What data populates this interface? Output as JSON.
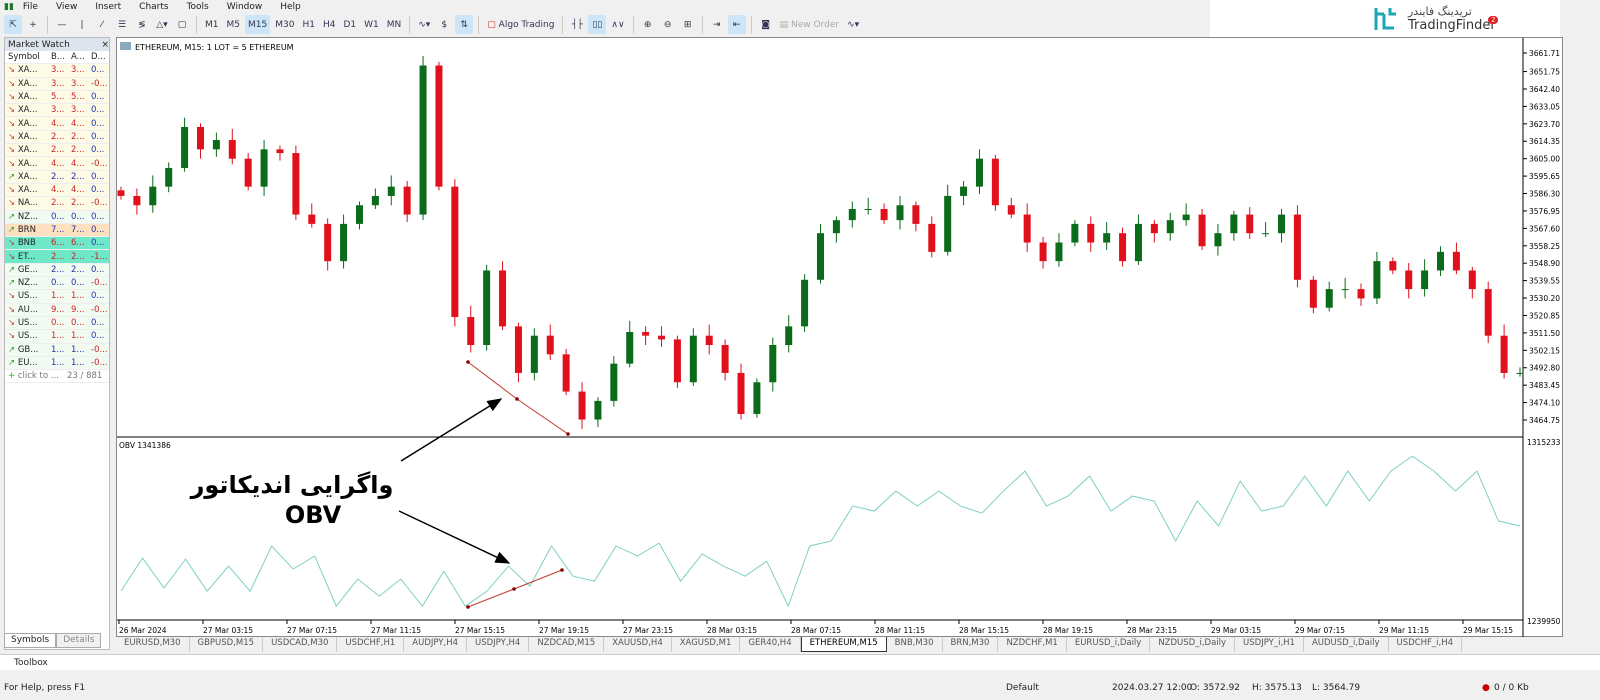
{
  "menu": [
    "File",
    "View",
    "Insert",
    "Charts",
    "Tools",
    "Window",
    "Help"
  ],
  "toolbar": {
    "timeframes": [
      "M1",
      "M5",
      "M15",
      "M30",
      "H1",
      "H4",
      "D1",
      "W1",
      "MN"
    ],
    "active_tf": "M15",
    "algo": "Algo Trading",
    "new_order": "New Order",
    "notif_count": "2"
  },
  "logo": {
    "persian": "تریدینگ فایندر",
    "latin": "TradingFinder"
  },
  "market_watch": {
    "title": "Market Watch",
    "headers": [
      "Symbol",
      "B...",
      "A...",
      "D..."
    ],
    "rows": [
      [
        "XA...",
        "3...",
        "3...",
        "0...",
        "down"
      ],
      [
        "XA...",
        "3...",
        "3...",
        "-0...",
        "down"
      ],
      [
        "XA...",
        "5...",
        "5...",
        "0...",
        "down"
      ],
      [
        "XA...",
        "3...",
        "3...",
        "0...",
        "down"
      ],
      [
        "XA...",
        "4...",
        "4...",
        "0...",
        "down"
      ],
      [
        "XA...",
        "2...",
        "2...",
        "0...",
        "down"
      ],
      [
        "XA...",
        "2...",
        "2...",
        "0...",
        "down"
      ],
      [
        "XA...",
        "4...",
        "4...",
        "-0...",
        "down"
      ],
      [
        "XA...",
        "2...",
        "2...",
        "0...",
        "up"
      ],
      [
        "XA...",
        "4...",
        "4...",
        "0...",
        "down"
      ],
      [
        "NA...",
        "2...",
        "2...",
        "-0...",
        "down"
      ],
      [
        "NZ...",
        "0...",
        "0...",
        "0...",
        "up"
      ],
      [
        "BRN",
        "7...",
        "7...",
        "0...",
        "up"
      ],
      [
        "BNB",
        "6...",
        "6...",
        "0...",
        "down"
      ],
      [
        "ET...",
        "2...",
        "2...",
        "-1...",
        "down"
      ],
      [
        "GE...",
        "2...",
        "2...",
        "0...",
        "up"
      ],
      [
        "NZ...",
        "0...",
        "0...",
        "-0...",
        "up"
      ],
      [
        "US...",
        "1...",
        "1...",
        "0...",
        "down"
      ],
      [
        "AU...",
        "9...",
        "9...",
        "-0...",
        "down"
      ],
      [
        "US...",
        "0...",
        "0...",
        "0...",
        "down"
      ],
      [
        "US...",
        "1...",
        "1...",
        "0...",
        "down"
      ],
      [
        "GB...",
        "1...",
        "1...",
        "-0...",
        "up"
      ],
      [
        "EU...",
        "1...",
        "1...",
        "-0...",
        "up"
      ]
    ],
    "add": "click to ...",
    "count": "23 / 881",
    "tabs": [
      "Symbols",
      "Details"
    ]
  },
  "chart": {
    "title": "ETHEREUM, M15:  1 LOT = 5 ETHEREUM",
    "indicator_label": "OBV 1341386",
    "price_ticks": [
      "3661.71",
      "3651.75",
      "3642.40",
      "3633.05",
      "3623.70",
      "3614.35",
      "3605.00",
      "3595.65",
      "3586.30",
      "3576.95",
      "3567.60",
      "3558.25",
      "3548.90",
      "3539.55",
      "3530.20",
      "3520.85",
      "3511.50",
      "3502.15",
      "3492.80",
      "3483.45",
      "3474.10",
      "3464.75"
    ],
    "obv_ticks": [
      "1315233",
      "1239950"
    ],
    "time_ticks": [
      "26 Mar 2024",
      "27 Mar 03:15",
      "27 Mar 07:15",
      "27 Mar 11:15",
      "27 Mar 15:15",
      "27 Mar 19:15",
      "27 Mar 23:15",
      "28 Mar 03:15",
      "28 Mar 07:15",
      "28 Mar 11:15",
      "28 Mar 15:15",
      "28 Mar 19:15",
      "28 Mar 23:15",
      "29 Mar 03:15",
      "29 Mar 07:15",
      "29 Mar 11:15",
      "29 Mar 15:15"
    ],
    "closes": [
      3585,
      3580,
      3590,
      3600,
      3622,
      3610,
      3615,
      3605,
      3590,
      3610,
      3608,
      3575,
      3570,
      3550,
      3570,
      3580,
      3585,
      3590,
      3575,
      3655,
      3590,
      3520,
      3505,
      3545,
      3515,
      3490,
      3510,
      3500,
      3480,
      3465,
      3475,
      3495,
      3512,
      3510,
      3508,
      3485,
      3510,
      3505,
      3490,
      3468,
      3485,
      3505,
      3515,
      3540,
      3565,
      3572,
      3578,
      3578,
      3572,
      3580,
      3570,
      3555,
      3585,
      3590,
      3605,
      3580,
      3575,
      3560,
      3550,
      3560,
      3570,
      3560,
      3565,
      3550,
      3570,
      3565,
      3572,
      3575,
      3558,
      3565,
      3575,
      3565,
      3565,
      3575,
      3540,
      3525,
      3535,
      3535,
      3530,
      3550,
      3545,
      3535,
      3545,
      3555,
      3545,
      3535,
      3510,
      3490,
      3490
    ],
    "obv": [
      1252500,
      1266400,
      1253800,
      1266000,
      1252500,
      1263000,
      1252500,
      1271500,
      1261800,
      1267300,
      1246200,
      1257600,
      1250400,
      1257600,
      1246200,
      1260900,
      1246200,
      1252500,
      1263000,
      1254600,
      1271500,
      1258800,
      1256700,
      1271500,
      1267300,
      1272700,
      1256700,
      1268100,
      1263000,
      1258800,
      1265100,
      1246200,
      1271500,
      1273600,
      1288300,
      1286200,
      1294600,
      1288300,
      1294600,
      1288300,
      1285300,
      1294600,
      1303000,
      1288300,
      1292500,
      1300900,
      1286200,
      1292500,
      1290400,
      1273600,
      1290400,
      1279900,
      1298800,
      1286200,
      1288300,
      1300900,
      1288300,
      1303000,
      1290400,
      1303000,
      1309300,
      1303000,
      1294600,
      1303000,
      1282000,
      1279900
    ],
    "colors": {
      "bull": "#0a6b1a",
      "bear": "#e0101c",
      "obv": "#7fcfc4",
      "divergence": "#c0392b"
    },
    "annotation": {
      "line1": "واگرایی اندیکاتور",
      "line2": "OBV"
    }
  },
  "tabs": [
    "EURUSD,M30",
    "GBPUSD,M15",
    "USDCAD,M30",
    "USDCHF,H1",
    "AUDJPY,H4",
    "USDJPY,H4",
    "NZDCAD,M15",
    "XAUUSD,H4",
    "XAGUSD,M1",
    "GER40,H4",
    "ETHEREUM,M15",
    "BNB,M30",
    "BRN,M30",
    "NZDCHF,M1",
    "EURUSD_i,Daily",
    "NZDUSD_i,Daily",
    "USDJPY_i,H1",
    "AUDUSD_i,Daily",
    "USDCHF_i,H4"
  ],
  "active_tab": "ETHEREUM,M15",
  "toolbox": "Toolbox",
  "status": {
    "help": "For Help, press F1",
    "profile": "Default",
    "time": "2024.03.27 12:00",
    "open": "O: 3572.92",
    "high": "H: 3575.13",
    "low": "L: 3564.79",
    "traffic": "0 / 0 Kb"
  }
}
